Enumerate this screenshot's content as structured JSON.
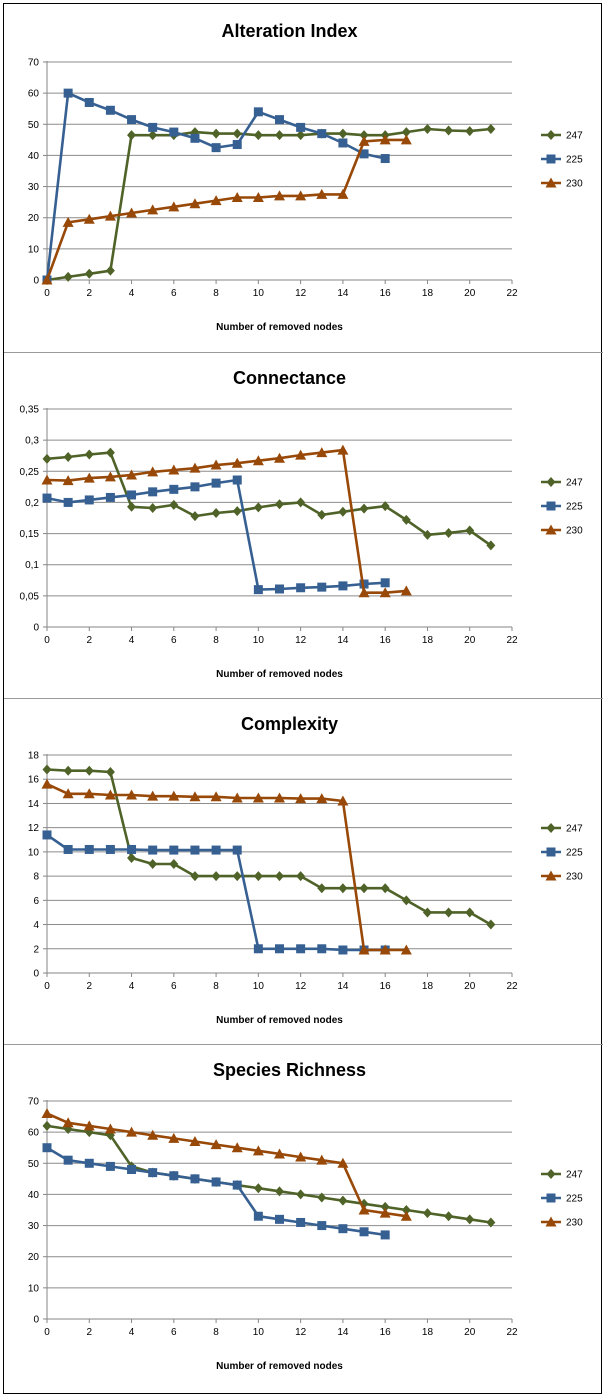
{
  "chart_data": [
    {
      "type": "line",
      "title": "Alteration Index",
      "xlabel": "Number of removed nodes",
      "ylabel": "",
      "xlim": [
        0,
        22
      ],
      "ylim": [
        0,
        70
      ],
      "xticks": [
        0,
        2,
        4,
        6,
        8,
        10,
        12,
        14,
        16,
        18,
        20,
        22
      ],
      "yticks": [
        0,
        10,
        20,
        30,
        40,
        50,
        60,
        70
      ],
      "ytick_labels": [
        "0",
        "10",
        "20",
        "30",
        "40",
        "50",
        "60",
        "70"
      ],
      "legend_position": "right",
      "series": [
        {
          "name": "247",
          "color": "#4f6228",
          "marker": "diamond",
          "x": [
            0,
            1,
            2,
            3,
            4,
            5,
            6,
            7,
            8,
            9,
            10,
            11,
            12,
            13,
            14,
            15,
            16,
            17,
            18,
            19,
            20,
            21
          ],
          "values": [
            0,
            1,
            2,
            3,
            46.5,
            46.5,
            46.5,
            47.5,
            47,
            47,
            46.5,
            46.5,
            46.5,
            47,
            47,
            46.5,
            46.5,
            47.5,
            48.5,
            48,
            47.8,
            48.5
          ]
        },
        {
          "name": "225",
          "color": "#376092",
          "marker": "square",
          "x": [
            0,
            1,
            2,
            3,
            4,
            5,
            6,
            7,
            8,
            9,
            10,
            11,
            12,
            13,
            14,
            15,
            16
          ],
          "values": [
            0,
            60,
            57,
            54.5,
            51.5,
            49,
            47.5,
            45.5,
            42.5,
            43.5,
            54,
            51.5,
            49,
            47,
            44,
            40.5,
            39
          ]
        },
        {
          "name": "230",
          "color": "#984807",
          "marker": "triangle",
          "x": [
            0,
            1,
            2,
            3,
            4,
            5,
            6,
            7,
            8,
            9,
            10,
            11,
            12,
            13,
            14,
            15,
            16,
            17
          ],
          "values": [
            0,
            18.5,
            19.5,
            20.5,
            21.5,
            22.5,
            23.5,
            24.5,
            25.5,
            26.5,
            26.5,
            27,
            27,
            27.5,
            27.5,
            44.5,
            45,
            45
          ]
        }
      ]
    },
    {
      "type": "line",
      "title": "Connectance",
      "xlabel": "Number of removed nodes",
      "ylabel": "",
      "xlim": [
        0,
        22
      ],
      "ylim": [
        0,
        0.35
      ],
      "xticks": [
        0,
        2,
        4,
        6,
        8,
        10,
        12,
        14,
        16,
        18,
        20,
        22
      ],
      "yticks": [
        0,
        0.05,
        0.1,
        0.15,
        0.2,
        0.25,
        0.3,
        0.35
      ],
      "ytick_labels": [
        "0",
        "0,05",
        "0,1",
        "0,15",
        "0,2",
        "0,25",
        "0,3",
        "0,35"
      ],
      "legend_position": "right",
      "series": [
        {
          "name": "247",
          "color": "#4f6228",
          "marker": "diamond",
          "x": [
            0,
            1,
            2,
            3,
            4,
            5,
            6,
            7,
            8,
            9,
            10,
            11,
            12,
            13,
            14,
            15,
            16,
            17,
            18,
            19,
            20,
            21
          ],
          "values": [
            0.27,
            0.273,
            0.277,
            0.28,
            0.193,
            0.191,
            0.196,
            0.178,
            0.183,
            0.186,
            0.192,
            0.197,
            0.2,
            0.18,
            0.185,
            0.19,
            0.194,
            0.172,
            0.148,
            0.151,
            0.155,
            0.131
          ]
        },
        {
          "name": "225",
          "color": "#376092",
          "marker": "square",
          "x": [
            0,
            1,
            2,
            3,
            4,
            5,
            6,
            7,
            8,
            9,
            10,
            11,
            12,
            13,
            14,
            15,
            16
          ],
          "values": [
            0.207,
            0.2,
            0.204,
            0.208,
            0.212,
            0.217,
            0.221,
            0.225,
            0.231,
            0.236,
            0.06,
            0.061,
            0.063,
            0.064,
            0.066,
            0.069,
            0.071
          ]
        },
        {
          "name": "230",
          "color": "#984807",
          "marker": "triangle",
          "x": [
            0,
            1,
            2,
            3,
            4,
            5,
            6,
            7,
            8,
            9,
            10,
            11,
            12,
            13,
            14,
            15,
            16,
            17
          ],
          "values": [
            0.236,
            0.235,
            0.239,
            0.241,
            0.244,
            0.249,
            0.252,
            0.255,
            0.26,
            0.263,
            0.267,
            0.271,
            0.276,
            0.28,
            0.284,
            0.055,
            0.055,
            0.058
          ]
        }
      ]
    },
    {
      "type": "line",
      "title": "Complexity",
      "xlabel": "Number of removed nodes",
      "ylabel": "",
      "xlim": [
        0,
        22
      ],
      "ylim": [
        0,
        18
      ],
      "xticks": [
        0,
        2,
        4,
        6,
        8,
        10,
        12,
        14,
        16,
        18,
        20,
        22
      ],
      "yticks": [
        0,
        2,
        4,
        6,
        8,
        10,
        12,
        14,
        16,
        18
      ],
      "ytick_labels": [
        "0",
        "2",
        "4",
        "6",
        "8",
        "10",
        "12",
        "14",
        "16",
        "18"
      ],
      "legend_position": "right",
      "series": [
        {
          "name": "247",
          "color": "#4f6228",
          "marker": "diamond",
          "x": [
            0,
            1,
            2,
            3,
            4,
            5,
            6,
            7,
            8,
            9,
            10,
            11,
            12,
            13,
            14,
            15,
            16,
            17,
            18,
            19,
            20,
            21
          ],
          "values": [
            16.8,
            16.7,
            16.7,
            16.6,
            9.5,
            9,
            9,
            8,
            8,
            8,
            8,
            8,
            8,
            7,
            7,
            7,
            7,
            6,
            5,
            5,
            5,
            4
          ]
        },
        {
          "name": "225",
          "color": "#376092",
          "marker": "square",
          "x": [
            0,
            1,
            2,
            3,
            4,
            5,
            6,
            7,
            8,
            9,
            10,
            11,
            12,
            13,
            14,
            15,
            16
          ],
          "values": [
            11.4,
            10.2,
            10.2,
            10.2,
            10.2,
            10.15,
            10.15,
            10.15,
            10.15,
            10.15,
            2,
            2,
            2,
            2,
            1.9,
            1.9,
            1.9
          ]
        },
        {
          "name": "230",
          "color": "#984807",
          "marker": "triangle",
          "x": [
            0,
            1,
            2,
            3,
            4,
            5,
            6,
            7,
            8,
            9,
            10,
            11,
            12,
            13,
            14,
            15,
            16,
            17
          ],
          "values": [
            15.6,
            14.8,
            14.8,
            14.7,
            14.7,
            14.6,
            14.6,
            14.55,
            14.55,
            14.45,
            14.45,
            14.45,
            14.4,
            14.4,
            14.2,
            1.9,
            1.9,
            1.9
          ]
        }
      ]
    },
    {
      "type": "line",
      "title": "Species Richness",
      "xlabel": "Number of removed nodes",
      "ylabel": "",
      "xlim": [
        0,
        22
      ],
      "ylim": [
        0,
        70
      ],
      "xticks": [
        0,
        2,
        4,
        6,
        8,
        10,
        12,
        14,
        16,
        18,
        20,
        22
      ],
      "yticks": [
        0,
        10,
        20,
        30,
        40,
        50,
        60,
        70
      ],
      "ytick_labels": [
        "0",
        "10",
        "20",
        "30",
        "40",
        "50",
        "60",
        "70"
      ],
      "legend_position": "right",
      "series": [
        {
          "name": "247",
          "color": "#4f6228",
          "marker": "diamond",
          "x": [
            0,
            1,
            2,
            3,
            4,
            5,
            6,
            7,
            8,
            9,
            10,
            11,
            12,
            13,
            14,
            15,
            16,
            17,
            18,
            19,
            20,
            21
          ],
          "values": [
            62,
            61,
            60,
            59,
            49,
            47,
            46,
            45,
            44,
            43,
            42,
            41,
            40,
            39,
            38,
            37,
            36,
            35,
            34,
            33,
            32,
            31
          ]
        },
        {
          "name": "225",
          "color": "#376092",
          "marker": "square",
          "x": [
            0,
            1,
            2,
            3,
            4,
            5,
            6,
            7,
            8,
            9,
            10,
            11,
            12,
            13,
            14,
            15,
            16
          ],
          "values": [
            55,
            51,
            50,
            49,
            48,
            47,
            46,
            45,
            44,
            43,
            33,
            32,
            31,
            30,
            29,
            28,
            27
          ]
        },
        {
          "name": "230",
          "color": "#984807",
          "marker": "triangle",
          "x": [
            0,
            1,
            2,
            3,
            4,
            5,
            6,
            7,
            8,
            9,
            10,
            11,
            12,
            13,
            14,
            15,
            16,
            17
          ],
          "values": [
            66,
            63,
            62,
            61,
            60,
            59,
            58,
            57,
            56,
            55,
            54,
            53,
            52,
            51,
            50,
            35,
            34,
            33
          ]
        }
      ]
    }
  ]
}
